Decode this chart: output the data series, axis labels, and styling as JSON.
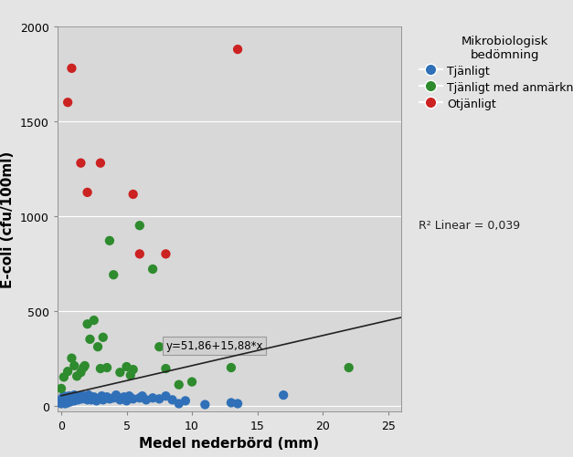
{
  "blue_x": [
    0.0,
    0.0,
    0.1,
    0.1,
    0.2,
    0.2,
    0.3,
    0.3,
    0.4,
    0.4,
    0.5,
    0.5,
    0.6,
    0.6,
    0.7,
    0.8,
    0.9,
    1.0,
    1.0,
    1.1,
    1.2,
    1.3,
    1.4,
    1.5,
    1.6,
    1.7,
    1.8,
    2.0,
    2.1,
    2.2,
    2.3,
    2.5,
    2.6,
    2.7,
    3.0,
    3.1,
    3.2,
    3.5,
    3.7,
    4.0,
    4.2,
    4.5,
    4.8,
    5.0,
    5.2,
    5.5,
    6.0,
    6.2,
    6.5,
    7.0,
    7.5,
    8.0,
    8.5,
    9.0,
    9.5,
    11.0,
    13.0,
    13.5,
    17.0
  ],
  "blue_y": [
    10,
    30,
    15,
    40,
    20,
    50,
    10,
    35,
    25,
    45,
    15,
    40,
    30,
    50,
    20,
    30,
    45,
    25,
    55,
    35,
    40,
    30,
    50,
    45,
    35,
    50,
    40,
    30,
    55,
    40,
    30,
    45,
    35,
    25,
    40,
    50,
    30,
    45,
    35,
    40,
    55,
    30,
    45,
    25,
    50,
    35,
    40,
    50,
    30,
    40,
    35,
    50,
    30,
    10,
    25,
    5,
    15,
    10,
    55
  ],
  "green_x": [
    0.0,
    0.2,
    0.5,
    0.8,
    1.0,
    1.2,
    1.5,
    1.7,
    1.8,
    2.0,
    2.2,
    2.5,
    2.8,
    3.0,
    3.2,
    3.5,
    3.7,
    4.0,
    4.5,
    5.0,
    5.3,
    5.5,
    6.0,
    7.0,
    7.5,
    8.0,
    8.5,
    9.0,
    10.0,
    13.0,
    22.0
  ],
  "green_y": [
    90,
    150,
    180,
    250,
    210,
    155,
    175,
    200,
    210,
    430,
    350,
    450,
    310,
    195,
    360,
    200,
    870,
    690,
    175,
    205,
    160,
    190,
    950,
    720,
    310,
    195,
    330,
    110,
    125,
    200,
    200
  ],
  "red_x": [
    0.5,
    0.8,
    1.5,
    2.0,
    3.0,
    5.5,
    6.0,
    8.0,
    13.5
  ],
  "red_y": [
    1600,
    1780,
    1280,
    1125,
    1280,
    1115,
    800,
    800,
    1880
  ],
  "intercept": 51.86,
  "slope": 15.88,
  "xlim": [
    -0.3,
    26
  ],
  "ylim": [
    -30,
    2000
  ],
  "xlabel": "Medel nederbörd (mm)",
  "ylabel": "E-coli (cfu/100ml)",
  "legend_title": "Mikrobiologisk\nbedömning",
  "legend_labels": [
    "Tjänligt",
    "Tjänligt med anmärkning",
    "Otjänligt"
  ],
  "legend_colors": [
    "#3070B8",
    "#2E8B2E",
    "#CC2222"
  ],
  "r2_text": "R² Linear = 0,039",
  "equation_text": "y=51,86+15,88*x",
  "bg_color": "#E4E4E4",
  "plot_bg_color": "#D8D8D8",
  "marker_size": 55,
  "line_color": "#222222",
  "xticks": [
    0,
    5,
    10,
    15,
    20,
    25
  ],
  "yticks": [
    0,
    500,
    1000,
    1500,
    2000
  ]
}
